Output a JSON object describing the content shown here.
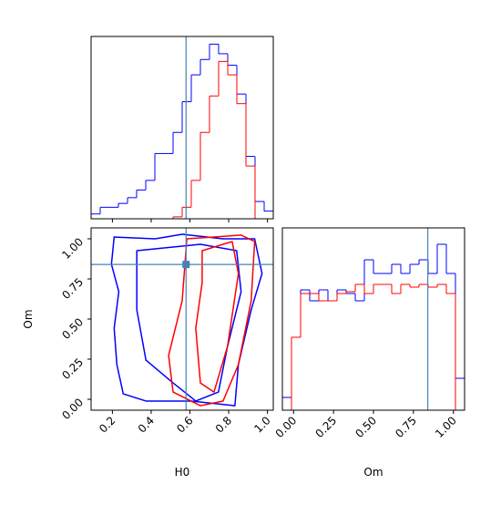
{
  "chart_data": [
    {
      "type": "histogram",
      "bins": [
        0.09,
        0.137,
        0.184,
        0.231,
        0.278,
        0.325,
        0.372,
        0.419,
        0.466,
        0.513,
        0.56,
        0.607,
        0.654,
        0.701,
        0.748,
        0.795,
        0.842,
        0.889,
        0.936,
        0.983,
        1.03
      ],
      "series": [
        {
          "color": "#0000ff",
          "values": [
            5,
            12,
            12,
            16,
            22,
            30,
            40,
            68,
            68,
            90,
            122,
            150,
            166,
            182,
            172,
            160,
            130,
            65,
            18,
            8
          ]
        },
        {
          "color": "#ff0000",
          "values": [
            0,
            0,
            0,
            0,
            0,
            0,
            0,
            0,
            0,
            2,
            12,
            40,
            90,
            128,
            164,
            150,
            120,
            55,
            0,
            0
          ]
        }
      ],
      "xlim": [
        0.09,
        1.03
      ],
      "ylim": [
        0,
        190
      ],
      "truth": 0.58,
      "truth_color": "#4682b4"
    },
    {
      "type": "contour",
      "xlabel": "H0",
      "ylabel": "Om",
      "xlim": [
        0.09,
        1.03
      ],
      "ylim": [
        -0.068,
        1.068
      ],
      "xticks": [
        0.2,
        0.4,
        0.6,
        0.8,
        {
          "value": 1.0,
          "label": "1.0"
        }
      ],
      "yticks": [
        {
          "value": 0,
          "label": "0.00"
        },
        {
          "value": 0.25,
          "label": "0.25"
        },
        {
          "value": 0.5,
          "label": "0.50"
        },
        {
          "value": 0.75,
          "label": "0.75"
        },
        {
          "value": 1.0,
          "label": "1.00"
        }
      ],
      "series": [
        {
          "color": "#0000ff",
          "x": [
            0.209,
            0.42,
            0.56,
            0.771,
            0.934,
            0.972,
            0.916,
            0.85,
            0.832,
            0.607,
            0.373,
            0.256,
            0.223,
            0.209,
            0.233,
            0.195
          ],
          "y": [
            1.011,
            1.0,
            1.028,
            1.0,
            1.0,
            0.784,
            0.557,
            0.216,
            -0.04,
            -0.011,
            -0.011,
            0.034,
            0.216,
            0.443,
            0.67,
            0.841
          ]
        },
        {
          "color": "#0000ff",
          "x": [
            0.326,
            0.654,
            0.841,
            0.864,
            0.794,
            0.747,
            0.63,
            0.513,
            0.373,
            0.326
          ],
          "y": [
            0.926,
            0.966,
            0.926,
            0.67,
            0.33,
            0.045,
            -0.011,
            0.102,
            0.244,
            0.557
          ]
        },
        {
          "color": "#ff0000",
          "x": [
            0.584,
            0.864,
            0.934,
            0.916,
            0.85,
            0.771,
            0.654,
            0.513,
            0.49,
            0.56
          ],
          "y": [
            1.0,
            1.023,
            0.983,
            0.614,
            0.216,
            -0.011,
            -0.04,
            0.045,
            0.273,
            0.614
          ]
        },
        {
          "color": "#ff0000",
          "x": [
            0.663,
            0.818,
            0.85,
            0.794,
            0.724,
            0.654,
            0.63,
            0.663
          ],
          "y": [
            0.926,
            0.983,
            0.784,
            0.33,
            0.045,
            0.102,
            0.443,
            0.727
          ]
        }
      ],
      "truth_x": 0.58,
      "truth_y": 0.84,
      "truth_color": "#4682b4"
    },
    {
      "type": "histogram",
      "xlabel": "Om",
      "bins": [
        -0.07,
        -0.013,
        0.044,
        0.101,
        0.158,
        0.215,
        0.272,
        0.329,
        0.386,
        0.443,
        0.5,
        0.557,
        0.614,
        0.671,
        0.728,
        0.785,
        0.842,
        0.899,
        0.956,
        1.013,
        1.07
      ],
      "series": [
        {
          "color": "#0000ff",
          "values": [
            14,
            80,
            132,
            120,
            132,
            120,
            132,
            128,
            120,
            165,
            150,
            150,
            160,
            150,
            160,
            165,
            150,
            182,
            150,
            35
          ]
        },
        {
          "color": "#ff0000",
          "values": [
            0,
            80,
            128,
            128,
            120,
            120,
            128,
            130,
            138,
            128,
            138,
            138,
            128,
            138,
            135,
            138,
            135,
            138,
            128,
            0
          ]
        }
      ],
      "xlim": [
        -0.07,
        1.07
      ],
      "ylim": [
        0,
        200
      ],
      "xticks": [
        {
          "value": 0,
          "label": "0.00"
        },
        {
          "value": 0.25,
          "label": "0.25"
        },
        {
          "value": 0.5,
          "label": "0.50"
        },
        {
          "value": 0.75,
          "label": "0.75"
        },
        {
          "value": 1.0,
          "label": "1.00"
        }
      ],
      "truth": 0.84,
      "truth_color": "#4682b4"
    }
  ]
}
